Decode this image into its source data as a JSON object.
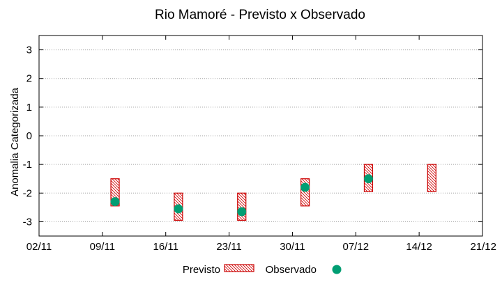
{
  "chart_data": {
    "type": "range-bar-with-points",
    "title": "Rio Mamoré - Previsto x Observado",
    "xlabel": "",
    "ylabel": "Anomalia Categorizada",
    "ylim": [
      -3.5,
      3.5
    ],
    "y_ticks": [
      3,
      2,
      1,
      0,
      -1,
      -2,
      -3
    ],
    "y_tick_labels": [
      "3",
      "2",
      "1",
      "0",
      "-1",
      "-2",
      "-3"
    ],
    "x_ticks": [
      "02/11",
      "09/11",
      "16/11",
      "23/11",
      "30/11",
      "07/12",
      "14/12",
      "21/12"
    ],
    "grid": true,
    "colors": {
      "previsto": "#cc0000",
      "observado": "#009e73"
    },
    "series": [
      {
        "name": "Previsto",
        "kind": "range",
        "x": [
          1.2,
          2.2,
          3.2,
          4.2,
          5.2,
          6.2
        ],
        "low": [
          -2.45,
          -2.95,
          -2.95,
          -2.45,
          -1.95,
          -1.95
        ],
        "high": [
          -1.5,
          -2.0,
          -2.0,
          -1.5,
          -1.0,
          -1.0
        ]
      },
      {
        "name": "Observado",
        "kind": "point",
        "x": [
          1.2,
          2.2,
          3.2,
          4.2,
          5.2
        ],
        "values": [
          -2.3,
          -2.55,
          -2.65,
          -1.8,
          -1.5
        ]
      }
    ],
    "legend": {
      "position": "bottom-center",
      "previsto_label": "Previsto",
      "observado_label": "Observado"
    }
  }
}
